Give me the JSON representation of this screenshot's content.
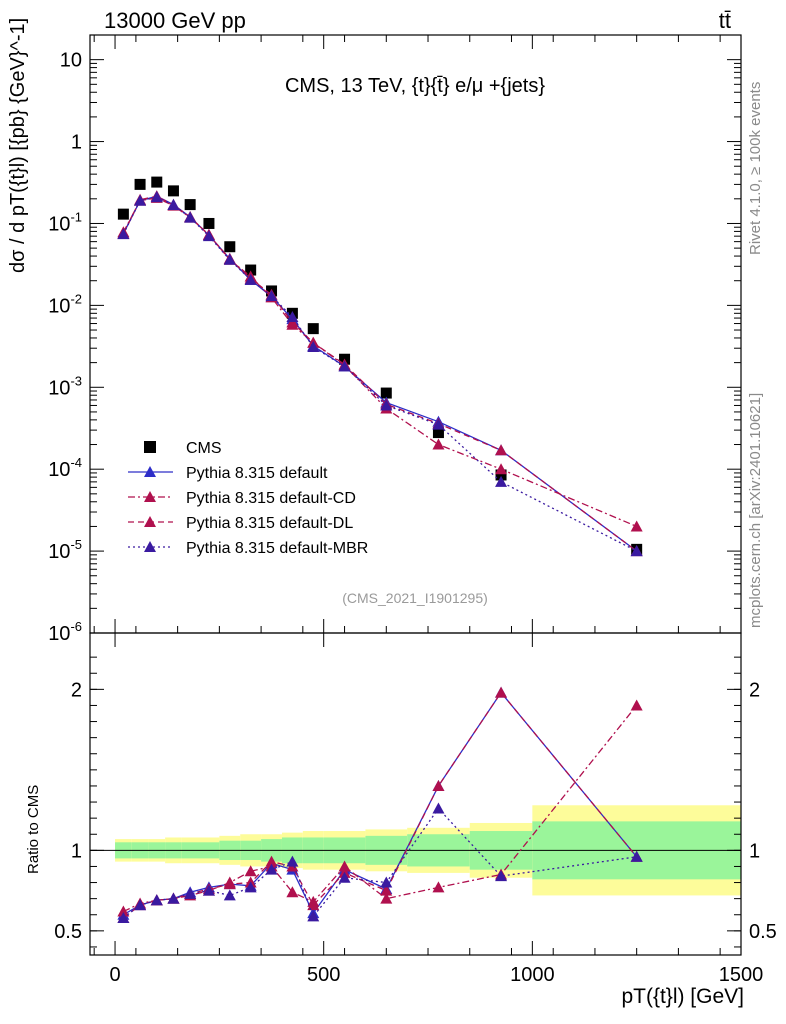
{
  "header": {
    "left": "13000 GeV pp",
    "right": "tt̄"
  },
  "side_labels": {
    "rivet": "Rivet 4.1.0, ≥ 100k events",
    "mcplots": "mcplots.cern.ch [arXiv:2401.10621]"
  },
  "chart_data": [
    {
      "type": "line",
      "panel": "main",
      "title": "CMS, 13 TeV, {t}{t̄} e/μ +{jets}",
      "analysis_id": "(CMS_2021_I1901295)",
      "ylabel": "dσ / d pT({t}l) [{pb} {GeV}^-1]",
      "yscale": "log",
      "ylim": [
        1e-06,
        20
      ],
      "xlim": [
        -60,
        1500
      ],
      "ytick_labels": [
        "10",
        "1",
        "10^-1",
        "10^-2",
        "10^-3",
        "10^-4",
        "10^-5",
        "10^-6"
      ],
      "x": [
        20,
        60,
        100,
        140,
        180,
        225,
        275,
        325,
        375,
        425,
        475,
        550,
        650,
        775,
        925,
        1250
      ],
      "series": [
        {
          "name": "CMS",
          "color": "#000000",
          "marker": "square",
          "style": "none",
          "values": [
            0.13,
            0.3,
            0.32,
            0.25,
            0.17,
            0.1,
            0.052,
            0.027,
            0.015,
            0.008,
            0.0052,
            0.0022,
            0.00085,
            0.00028,
            8.5e-05,
            1.05e-05
          ]
        },
        {
          "name": "Pythia 8.315 default",
          "color": "#2d2dc8",
          "marker": "triangle",
          "style": "solid",
          "values": [
            0.075,
            0.19,
            0.215,
            0.17,
            0.12,
            0.072,
            0.037,
            0.0205,
            0.0128,
            0.0068,
            0.0032,
            0.0018,
            0.00065,
            0.00038,
            0.00017,
            1e-05
          ]
        },
        {
          "name": "Pythia 8.315 default-CD",
          "color": "#b0104e",
          "marker": "triangle",
          "style": "dashdot",
          "values": [
            0.078,
            0.19,
            0.205,
            0.165,
            0.118,
            0.073,
            0.036,
            0.0225,
            0.0125,
            0.0058,
            0.0035,
            0.00185,
            0.00055,
            0.0002,
            0.0001,
            2e-05
          ]
        },
        {
          "name": "Pythia 8.315 default-DL",
          "color": "#b0104e",
          "marker": "triangle",
          "style": "dashed",
          "values": [
            0.075,
            0.195,
            0.215,
            0.168,
            0.12,
            0.072,
            0.037,
            0.0212,
            0.0135,
            0.0062,
            0.0035,
            0.0019,
            0.00062,
            0.00036,
            0.00017,
            1e-05
          ]
        },
        {
          "name": "Pythia 8.315 default-MBR",
          "color": "#3a1aa0",
          "marker": "triangle",
          "style": "dotted",
          "values": [
            0.074,
            0.19,
            0.21,
            0.168,
            0.118,
            0.07,
            0.036,
            0.0205,
            0.013,
            0.0072,
            0.0031,
            0.0018,
            0.0006,
            0.00035,
            7e-05,
            1e-05
          ]
        }
      ]
    },
    {
      "type": "line",
      "panel": "ratio",
      "ylabel": "Ratio to CMS",
      "xlabel": "pT({t}l) [GeV]",
      "ylim": [
        0.35,
        2.35
      ],
      "xlim": [
        -60,
        1500
      ],
      "ytick_labels": [
        "0.5",
        "1",
        "2"
      ],
      "xtick_labels": [
        "0",
        "500",
        "1000",
        "1500"
      ],
      "x": [
        20,
        60,
        100,
        140,
        180,
        225,
        275,
        325,
        375,
        425,
        475,
        550,
        650,
        775,
        925,
        1250
      ],
      "bins": [
        0,
        40,
        80,
        120,
        160,
        200,
        250,
        300,
        350,
        400,
        450,
        500,
        600,
        700,
        850,
        1000,
        1500
      ],
      "band_inner": [
        0.05,
        0.05,
        0.05,
        0.05,
        0.05,
        0.05,
        0.06,
        0.06,
        0.07,
        0.08,
        0.08,
        0.08,
        0.09,
        0.1,
        0.12,
        0.18
      ],
      "band_outer": [
        0.07,
        0.07,
        0.07,
        0.08,
        0.08,
        0.08,
        0.09,
        0.1,
        0.1,
        0.11,
        0.12,
        0.12,
        0.13,
        0.14,
        0.17,
        0.28
      ],
      "series": [
        {
          "name": "Pythia 8.315 default",
          "color": "#2d2dc8",
          "style": "solid",
          "values": [
            0.6,
            0.66,
            0.69,
            0.7,
            0.74,
            0.77,
            0.79,
            0.78,
            0.92,
            0.88,
            0.61,
            0.88,
            0.76,
            1.4,
            1.98,
            0.96
          ]
        },
        {
          "name": "Pythia 8.315 default-CD",
          "color": "#b0104e",
          "style": "dashdot",
          "values": [
            0.62,
            0.67,
            0.69,
            0.7,
            0.72,
            0.75,
            0.8,
            0.87,
            0.9,
            0.74,
            0.68,
            0.9,
            0.7,
            0.77,
            0.85,
            1.9
          ]
        },
        {
          "name": "Pythia 8.315 default-DL",
          "color": "#b0104e",
          "style": "dashed",
          "values": [
            0.58,
            0.66,
            0.69,
            0.7,
            0.73,
            0.76,
            0.79,
            0.8,
            0.93,
            0.9,
            0.66,
            0.86,
            0.75,
            1.4,
            1.98,
            0.96
          ]
        },
        {
          "name": "Pythia 8.315 default-MBR",
          "color": "#3a1aa0",
          "style": "dotted",
          "values": [
            0.58,
            0.66,
            0.69,
            0.7,
            0.73,
            0.75,
            0.72,
            0.77,
            0.88,
            0.93,
            0.59,
            0.83,
            0.8,
            1.26,
            0.84,
            0.96
          ]
        }
      ]
    }
  ]
}
